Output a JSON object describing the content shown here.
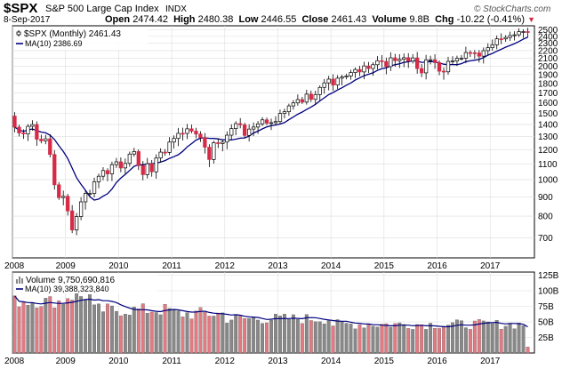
{
  "header": {
    "symbol": "$SPX",
    "name": "S&P 500 Large Cap Index",
    "exchange": "INDX",
    "brand": "© StockCharts.com",
    "date": "8-Sep-2017",
    "open_label": "Open",
    "open": "2474.42",
    "high_label": "High",
    "high": "2480.38",
    "low_label": "Low",
    "low": "2446.55",
    "close_label": "Close",
    "close": "2461.43",
    "volume_label": "Volume",
    "volume": "9.8B",
    "chg_label": "Chg",
    "chg": "-10.22 (-0.41%)",
    "chg_arrow": "▼"
  },
  "colors": {
    "up_candle": "#ffffff",
    "down_candle": "#d62a46",
    "ma_line": "#00007f",
    "up_volume": "#888888",
    "down_volume": "#e27a82",
    "grid": "#dedede",
    "frame": "#000000"
  },
  "chart_data": [
    {
      "type": "candlestick",
      "legend": {
        "series": "$SPX (Monthly) 2461.43",
        "ma": "MA(10) 2386.69"
      },
      "y_scale": "log",
      "ylim": [
        620,
        2560
      ],
      "y_ticks": [
        700,
        800,
        900,
        1000,
        1100,
        1200,
        1300,
        1400,
        1500,
        1600,
        1700,
        1800,
        1900,
        2000,
        2100,
        2200,
        2300,
        2400,
        2500
      ],
      "x_tick_labels": [
        "2008",
        "2009",
        "2010",
        "2011",
        "2012",
        "2013",
        "2014",
        "2015",
        "2016",
        "2017"
      ],
      "start": "2008-01",
      "closes": [
        1378,
        1330,
        1322,
        1385,
        1400,
        1280,
        1267,
        1283,
        1166,
        969,
        896,
        903,
        826,
        735,
        798,
        873,
        919,
        919,
        987,
        1021,
        1057,
        1036,
        1096,
        1115,
        1074,
        1104,
        1169,
        1187,
        1089,
        1031,
        1102,
        1049,
        1141,
        1183,
        1181,
        1258,
        1286,
        1327,
        1326,
        1364,
        1345,
        1321,
        1292,
        1219,
        1131,
        1253,
        1247,
        1258,
        1312,
        1366,
        1408,
        1398,
        1310,
        1362,
        1379,
        1406,
        1441,
        1412,
        1416,
        1426,
        1498,
        1514,
        1569,
        1598,
        1631,
        1606,
        1686,
        1633,
        1682,
        1757,
        1806,
        1848,
        1783,
        1859,
        1872,
        1884,
        1924,
        1960,
        1931,
        2003,
        1972,
        2018,
        2068,
        2059,
        1995,
        2105,
        2068,
        2086,
        2107,
        2063,
        2104,
        1972,
        1920,
        2079,
        2080,
        2044,
        1940,
        1932,
        2060,
        2065,
        2097,
        2099,
        2174,
        2171,
        2168,
        2126,
        2199,
        2239,
        2279,
        2364,
        2363,
        2384,
        2412,
        2423,
        2470,
        2471,
        2461
      ],
      "ma_last": 2386.69
    },
    {
      "type": "bar",
      "title": "Volume",
      "legend": {
        "series": "Volume 9,750,690,816",
        "ma": "MA(10) 39,388,323,840"
      },
      "ylim": [
        0,
        130
      ],
      "y_unit": "B",
      "y_ticks_labels": [
        "25B",
        "50B",
        "75B",
        "100B",
        "125B"
      ],
      "y_ticks_values": [
        25,
        50,
        75,
        100,
        125
      ],
      "x_tick_labels": [
        "2008",
        "2009",
        "2010",
        "2011",
        "2012",
        "2013",
        "2014",
        "2015",
        "2016",
        "2017"
      ]
    }
  ]
}
